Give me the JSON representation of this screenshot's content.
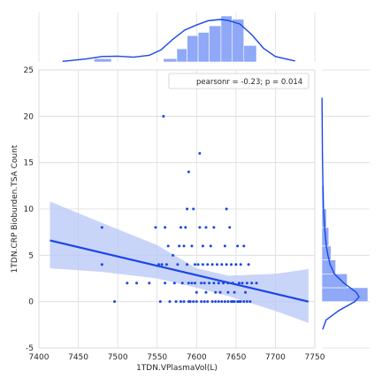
{
  "chart_data": {
    "type": "scatter",
    "kind": "jointplot-reg",
    "xlabel": "1TDN.VPlasmaVol(L)",
    "ylabel": "1TDN.CRP Bioburden.TSA Count",
    "xlim": [
      7400,
      7750
    ],
    "ylim": [
      -5,
      25
    ],
    "xticks": [
      7400,
      7450,
      7500,
      7550,
      7600,
      7650,
      7700,
      7750
    ],
    "yticks": [
      -5,
      0,
      5,
      10,
      15,
      20,
      25
    ],
    "grid": true,
    "annotation": "pearsonr = -0.23; p = 0.014",
    "legend_placement": "top-right",
    "colors": {
      "points": "#1a46e6",
      "fit": "#1a46e6",
      "ci": "#b7c6f7",
      "hist": "#8fa8f7",
      "grid": "#dcdcdc"
    },
    "points": [
      [
        7480,
        8
      ],
      [
        7480,
        4
      ],
      [
        7496,
        0
      ],
      [
        7512,
        2
      ],
      [
        7524,
        2
      ],
      [
        7540,
        2
      ],
      [
        7548,
        8
      ],
      [
        7552,
        4
      ],
      [
        7554,
        0
      ],
      [
        7556,
        4
      ],
      [
        7558,
        20
      ],
      [
        7560,
        8
      ],
      [
        7560,
        2
      ],
      [
        7562,
        4
      ],
      [
        7564,
        6
      ],
      [
        7566,
        0
      ],
      [
        7570,
        5
      ],
      [
        7572,
        2
      ],
      [
        7574,
        0
      ],
      [
        7576,
        4
      ],
      [
        7578,
        6
      ],
      [
        7580,
        8
      ],
      [
        7582,
        2
      ],
      [
        7584,
        0
      ],
      [
        7584,
        6
      ],
      [
        7586,
        8
      ],
      [
        7588,
        10
      ],
      [
        7588,
        4
      ],
      [
        7590,
        14
      ],
      [
        7590,
        2
      ],
      [
        7592,
        0
      ],
      [
        7594,
        6
      ],
      [
        7594,
        2
      ],
      [
        7596,
        10
      ],
      [
        7596,
        0
      ],
      [
        7598,
        4
      ],
      [
        7598,
        2
      ],
      [
        7600,
        0
      ],
      [
        7602,
        4
      ],
      [
        7604,
        16
      ],
      [
        7604,
        8
      ],
      [
        7606,
        0
      ],
      [
        7606,
        2
      ],
      [
        7608,
        6
      ],
      [
        7608,
        4
      ],
      [
        7610,
        0
      ],
      [
        7610,
        2
      ],
      [
        7612,
        8
      ],
      [
        7614,
        4
      ],
      [
        7614,
        0
      ],
      [
        7616,
        2
      ],
      [
        7618,
        6
      ],
      [
        7620,
        4
      ],
      [
        7620,
        0
      ],
      [
        7622,
        8
      ],
      [
        7622,
        2
      ],
      [
        7624,
        0
      ],
      [
        7626,
        4
      ],
      [
        7628,
        2
      ],
      [
        7628,
        0
      ],
      [
        7630,
        1
      ],
      [
        7632,
        4
      ],
      [
        7632,
        0
      ],
      [
        7634,
        2
      ],
      [
        7636,
        6
      ],
      [
        7636,
        0
      ],
      [
        7638,
        10
      ],
      [
        7638,
        4
      ],
      [
        7640,
        2
      ],
      [
        7640,
        0
      ],
      [
        7642,
        8
      ],
      [
        7644,
        0
      ],
      [
        7644,
        4
      ],
      [
        7646,
        2
      ],
      [
        7648,
        1
      ],
      [
        7648,
        0
      ],
      [
        7650,
        4
      ],
      [
        7652,
        6
      ],
      [
        7652,
        0
      ],
      [
        7654,
        2
      ],
      [
        7656,
        0
      ],
      [
        7656,
        4
      ],
      [
        7658,
        2
      ],
      [
        7660,
        0
      ],
      [
        7660,
        6
      ],
      [
        7662,
        1
      ],
      [
        7664,
        0
      ],
      [
        7664,
        2
      ],
      [
        7666,
        4
      ],
      [
        7668,
        0
      ],
      [
        7670,
        2
      ],
      [
        7676,
        2
      ],
      [
        7600,
        1
      ],
      [
        7590,
        0
      ],
      [
        7580,
        0
      ],
      [
        7612,
        1
      ],
      [
        7624,
        1
      ],
      [
        7646,
        0
      ],
      [
        7654,
        0
      ],
      [
        7640,
        1
      ]
    ],
    "regression": {
      "x": [
        7414,
        7742
      ],
      "y": [
        6.6,
        0.0
      ]
    },
    "ci_band": {
      "x": [
        7414,
        7480,
        7550,
        7600,
        7640,
        7700,
        7742
      ],
      "lo": [
        3.6,
        3.2,
        2.5,
        1.5,
        0.6,
        -1.0,
        -2.3
      ],
      "hi": [
        10.8,
        8.5,
        6.1,
        3.6,
        2.8,
        3.0,
        3.5
      ]
    },
    "marginal_x": {
      "bin_edges": [
        7470,
        7492,
        7514,
        7536,
        7558,
        7575,
        7588,
        7602,
        7616,
        7631,
        7645,
        7660,
        7676
      ],
      "counts": [
        1,
        0,
        0,
        0,
        1,
        4,
        8,
        9,
        11,
        14,
        13,
        5
      ],
      "kde_x": [
        7430,
        7460,
        7480,
        7500,
        7520,
        7540,
        7555,
        7570,
        7585,
        7600,
        7615,
        7630,
        7640,
        7655,
        7670,
        7685,
        7700,
        7725
      ],
      "kde_y": [
        0.2,
        1.0,
        1.8,
        1.9,
        1.6,
        2.2,
        4.0,
        7.5,
        10.5,
        12.2,
        13.6,
        14.0,
        13.7,
        12.5,
        9.0,
        4.5,
        1.8,
        0.3
      ]
    },
    "marginal_y": {
      "bin_edges": [
        0,
        1.5,
        3,
        4.5,
        6,
        8,
        10,
        12.5,
        15,
        18,
        21
      ],
      "counts": [
        20,
        11,
        6,
        4,
        3,
        2,
        1,
        0,
        0,
        0
      ],
      "kde_y": [
        -3,
        -2,
        -1,
        0,
        0.5,
        1,
        2,
        3,
        4,
        5,
        6,
        8,
        10,
        12,
        14,
        16,
        18,
        20,
        22
      ],
      "kde_x": [
        0.3,
        1.5,
        6.0,
        12.0,
        13.5,
        12.5,
        8.0,
        4.5,
        3.0,
        2.2,
        1.6,
        1.0,
        0.6,
        0.4,
        0.3,
        0.2,
        0.15,
        0.1,
        0.05
      ]
    }
  }
}
